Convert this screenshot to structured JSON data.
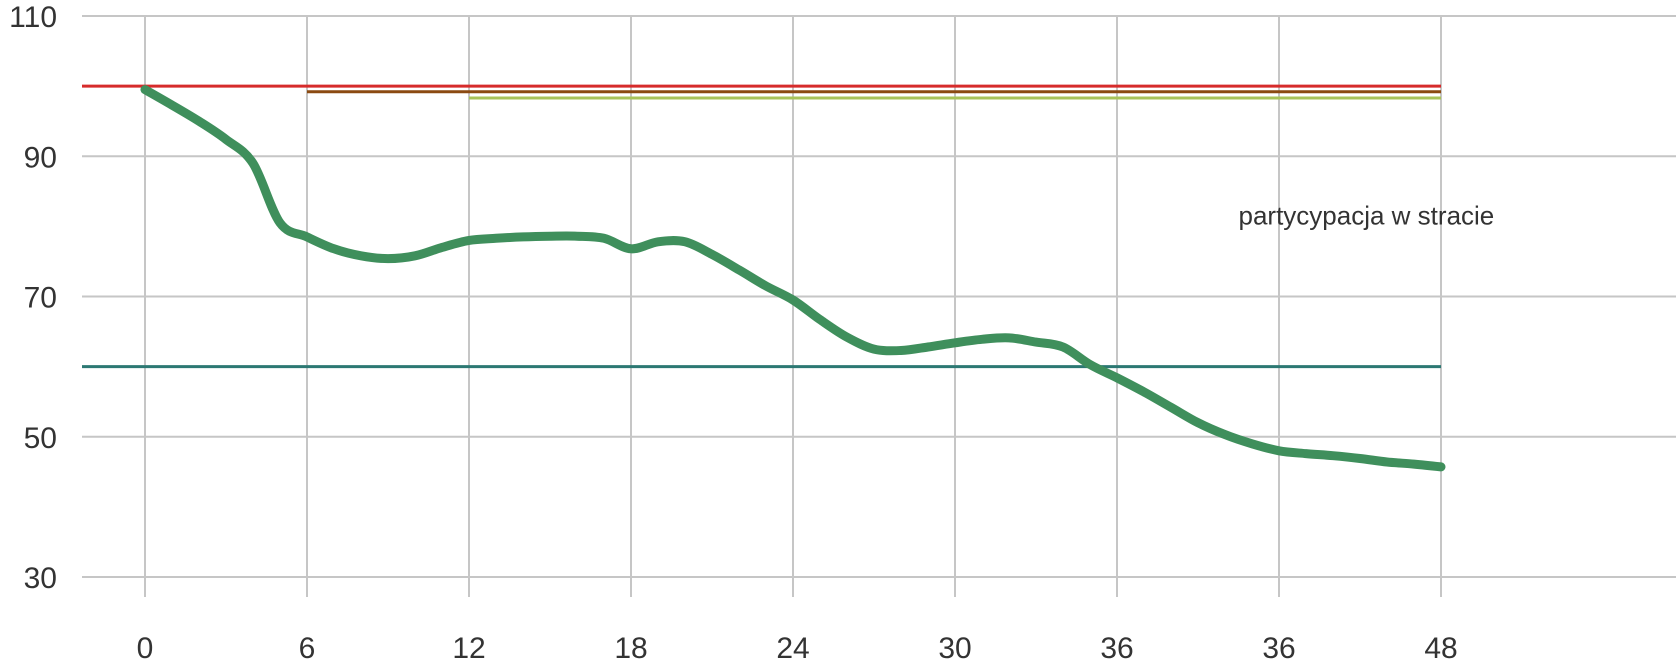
{
  "chart_data": {
    "type": "line",
    "title": "",
    "xlabel": "",
    "ylabel": "",
    "x_categories": [
      "0",
      "6",
      "12",
      "18",
      "24",
      "30",
      "36",
      "36",
      "48"
    ],
    "y_ticks": [
      30,
      50,
      70,
      90,
      110
    ],
    "ylim": [
      30,
      110
    ],
    "grid": true,
    "series": [
      {
        "color": "#3f8f5c",
        "points": [
          [
            0,
            99.5
          ],
          [
            1,
            97.3
          ],
          [
            2,
            95.0
          ],
          [
            3,
            92.4
          ],
          [
            4,
            89.0
          ],
          [
            5,
            80.5
          ],
          [
            6,
            78.5
          ],
          [
            7,
            76.8
          ],
          [
            8,
            75.8
          ],
          [
            9,
            75.4
          ],
          [
            10,
            75.8
          ],
          [
            11,
            77.0
          ],
          [
            12,
            78.0
          ],
          [
            13,
            78.3
          ],
          [
            14,
            78.5
          ],
          [
            15,
            78.6
          ],
          [
            16,
            78.6
          ],
          [
            17,
            78.3
          ],
          [
            18,
            76.8
          ],
          [
            19,
            77.8
          ],
          [
            20,
            77.8
          ],
          [
            21,
            76.0
          ],
          [
            22,
            73.8
          ],
          [
            23,
            71.5
          ],
          [
            24,
            69.5
          ],
          [
            25,
            66.7
          ],
          [
            26,
            64.2
          ],
          [
            27,
            62.5
          ],
          [
            28,
            62.3
          ],
          [
            29,
            62.8
          ],
          [
            30,
            63.4
          ],
          [
            31,
            63.9
          ],
          [
            32,
            64.1
          ],
          [
            33,
            63.5
          ],
          [
            34,
            62.8
          ],
          [
            35,
            60.3
          ],
          [
            36,
            58.4
          ],
          [
            37,
            56.4
          ],
          [
            38,
            54.2
          ],
          [
            39,
            52.0
          ],
          [
            40,
            50.3
          ],
          [
            41,
            49.0
          ],
          [
            42,
            48.0
          ],
          [
            43,
            47.6
          ],
          [
            44,
            47.3
          ],
          [
            45,
            46.9
          ],
          [
            46,
            46.4
          ],
          [
            47,
            46.1
          ],
          [
            48,
            45.7
          ]
        ]
      }
    ],
    "reference_lines": [
      {
        "y": 100,
        "x_from": -2.4,
        "x_to": 48,
        "color": "#d62b2b"
      },
      {
        "y": 99.2,
        "x_from": 6,
        "x_to": 48,
        "color": "#8b4a12"
      },
      {
        "y": 98.3,
        "x_from": 12,
        "x_to": 48,
        "color": "#a8c35a"
      },
      {
        "y": 60,
        "x_from": -2.4,
        "x_to": 48,
        "color": "#2c7873"
      }
    ],
    "annotations": [
      {
        "text": "partycypacja w stracie",
        "x": 40.5,
        "y": 80
      }
    ]
  }
}
